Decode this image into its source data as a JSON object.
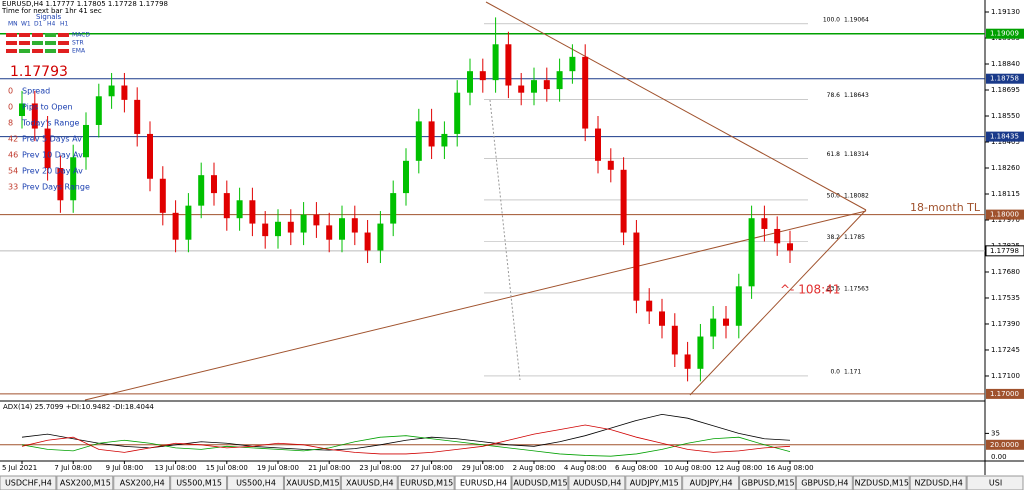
{
  "header": {
    "symbol_line": "EURUSD,H4  1.17777 1.17805 1.17728 1.17798",
    "timer": "Time for next bar 1hr 41 sec"
  },
  "panel": {
    "signals_title": "Signals",
    "timeframes": [
      "MN",
      "W1",
      "D1",
      "H4",
      "H1"
    ],
    "indicators": [
      "MACD",
      "STR",
      "EMA"
    ],
    "price": "1.17793",
    "rows": [
      {
        "value": "0",
        "label": "Spread"
      },
      {
        "value": "0",
        "label": "Pips to Open"
      },
      {
        "value": "8",
        "label": "Today's Range"
      },
      {
        "value": "42",
        "label": "Prev 5 Days Av"
      },
      {
        "value": "46",
        "label": "Prev 10 Day Av"
      },
      {
        "value": "54",
        "label": "Prev 20 Day Av"
      },
      {
        "value": "33",
        "label": "Prev Days Range"
      }
    ]
  },
  "chart_data": {
    "type": "candlestick",
    "bull_color": "#00c000",
    "bear_color": "#e00000",
    "categories": [
      "5 Jul 2021",
      null,
      null,
      null,
      "7 Jul 08:00",
      null,
      null,
      null,
      "9 Jul 08:00",
      null,
      null,
      null,
      "13 Jul 08:00",
      null,
      null,
      null,
      "15 Jul 08:00",
      null,
      null,
      null,
      "19 Jul 08:00",
      null,
      null,
      null,
      "21 Jul 08:00",
      null,
      null,
      null,
      "23 Jul 08:00",
      null,
      null,
      null,
      "27 Jul 08:00",
      null,
      null,
      null,
      "29 Jul 08:00",
      null,
      null,
      null,
      "2 Aug 08:00",
      null,
      null,
      null,
      "4 Aug 08:00",
      null,
      null,
      null,
      "6 Aug 08:00",
      null,
      null,
      null,
      "10 Aug 08:00",
      null,
      null,
      null,
      "12 Aug 08:00",
      null,
      null,
      null,
      "16 Aug 08:00"
    ],
    "candles": [
      [
        1.1855,
        1.1869,
        1.1848,
        1.1862
      ],
      [
        1.1862,
        1.1869,
        1.1841,
        1.1848
      ],
      [
        1.1848,
        1.1855,
        1.1819,
        1.1826
      ],
      [
        1.1826,
        1.1833,
        1.1801,
        1.1808
      ],
      [
        1.1808,
        1.1839,
        1.1801,
        1.1832
      ],
      [
        1.1832,
        1.1857,
        1.1825,
        1.185
      ],
      [
        1.185,
        1.1873,
        1.1843,
        1.1866
      ],
      [
        1.1866,
        1.1879,
        1.1859,
        1.1872
      ],
      [
        1.1872,
        1.1879,
        1.1857,
        1.1864
      ],
      [
        1.1864,
        1.1871,
        1.1838,
        1.1845
      ],
      [
        1.1845,
        1.1852,
        1.1813,
        1.182
      ],
      [
        1.182,
        1.1827,
        1.1794,
        1.1801
      ],
      [
        1.1801,
        1.1808,
        1.1779,
        1.1786
      ],
      [
        1.1786,
        1.1812,
        1.1779,
        1.1805
      ],
      [
        1.1805,
        1.1829,
        1.1798,
        1.1822
      ],
      [
        1.1822,
        1.1829,
        1.1805,
        1.1812
      ],
      [
        1.1812,
        1.1819,
        1.1791,
        1.1798
      ],
      [
        1.1798,
        1.1815,
        1.1791,
        1.1808
      ],
      [
        1.1808,
        1.1815,
        1.1788,
        1.1795
      ],
      [
        1.1795,
        1.1802,
        1.1781,
        1.1788
      ],
      [
        1.1788,
        1.1803,
        1.1781,
        1.1796
      ],
      [
        1.1796,
        1.1803,
        1.1783,
        1.179
      ],
      [
        1.179,
        1.1807,
        1.1783,
        1.18
      ],
      [
        1.18,
        1.1807,
        1.1787,
        1.1794
      ],
      [
        1.1794,
        1.1801,
        1.1779,
        1.1786
      ],
      [
        1.1786,
        1.1805,
        1.1779,
        1.1798
      ],
      [
        1.1798,
        1.1805,
        1.1783,
        1.179
      ],
      [
        1.179,
        1.1797,
        1.1773,
        1.178
      ],
      [
        1.178,
        1.1802,
        1.1773,
        1.1795
      ],
      [
        1.1795,
        1.1819,
        1.1788,
        1.1812
      ],
      [
        1.1812,
        1.1837,
        1.1805,
        1.183
      ],
      [
        1.183,
        1.1859,
        1.1823,
        1.1852
      ],
      [
        1.1852,
        1.1859,
        1.1831,
        1.1838
      ],
      [
        1.1838,
        1.1852,
        1.1831,
        1.1845
      ],
      [
        1.1845,
        1.1875,
        1.1838,
        1.1868
      ],
      [
        1.1868,
        1.1887,
        1.1861,
        1.188
      ],
      [
        1.188,
        1.1887,
        1.1868,
        1.1875
      ],
      [
        1.1875,
        1.191,
        1.1868,
        1.1895
      ],
      [
        1.1895,
        1.1902,
        1.1865,
        1.1872
      ],
      [
        1.1872,
        1.1879,
        1.1861,
        1.1868
      ],
      [
        1.1868,
        1.1882,
        1.1861,
        1.1875
      ],
      [
        1.1875,
        1.1882,
        1.1863,
        1.187
      ],
      [
        1.187,
        1.1887,
        1.1863,
        1.188
      ],
      [
        1.188,
        1.1895,
        1.1873,
        1.1888
      ],
      [
        1.1888,
        1.1895,
        1.1841,
        1.1848
      ],
      [
        1.1848,
        1.1855,
        1.1823,
        1.183
      ],
      [
        1.183,
        1.1837,
        1.1818,
        1.1825
      ],
      [
        1.1825,
        1.1832,
        1.1783,
        1.179
      ],
      [
        1.179,
        1.1797,
        1.1745,
        1.1752
      ],
      [
        1.1752,
        1.1759,
        1.1739,
        1.1746
      ],
      [
        1.1746,
        1.1753,
        1.1731,
        1.1738
      ],
      [
        1.1738,
        1.1745,
        1.1715,
        1.1722
      ],
      [
        1.1722,
        1.1729,
        1.1707,
        1.1714
      ],
      [
        1.1714,
        1.1739,
        1.1707,
        1.1732
      ],
      [
        1.1732,
        1.1749,
        1.1725,
        1.1742
      ],
      [
        1.1742,
        1.1749,
        1.1731,
        1.1738
      ],
      [
        1.1738,
        1.1767,
        1.1731,
        1.176
      ],
      [
        1.176,
        1.1805,
        1.1753,
        1.1798
      ],
      [
        1.1798,
        1.1805,
        1.1785,
        1.1792
      ],
      [
        1.1792,
        1.1799,
        1.1777,
        1.1784
      ],
      [
        1.1784,
        1.1791,
        1.1773,
        1.178
      ]
    ],
    "ylim": [
      1.16966,
      1.19197
    ],
    "yticks": [
      {
        "value": 1.1913,
        "label": "1.19130"
      },
      {
        "value": 1.18985,
        "label": "1.18985"
      },
      {
        "value": 1.1884,
        "label": "1.18840"
      },
      {
        "value": 1.18695,
        "label": "1.18695"
      },
      {
        "value": 1.1855,
        "label": "1.18550"
      },
      {
        "value": 1.18405,
        "label": "1.18405"
      },
      {
        "value": 1.1826,
        "label": "1.18260"
      },
      {
        "value": 1.18115,
        "label": "1.18115"
      },
      {
        "value": 1.1797,
        "label": "1.17970"
      },
      {
        "value": 1.17825,
        "label": "1.17825"
      },
      {
        "value": 1.1768,
        "label": "1.17680"
      },
      {
        "value": 1.17535,
        "label": "1.17535"
      },
      {
        "value": 1.1739,
        "label": "1.17390"
      },
      {
        "value": 1.17245,
        "label": "1.17245"
      },
      {
        "value": 1.171,
        "label": "1.17100"
      }
    ],
    "levels": [
      {
        "value": 1.19009,
        "label": "1.19009",
        "color": "#00a000"
      },
      {
        "value": 1.18758,
        "label": "1.18758",
        "color": "#1a3a8a"
      },
      {
        "value": 1.18435,
        "label": "1.18435",
        "color": "#1a3a8a"
      },
      {
        "value": 1.18,
        "label": "1.18000",
        "color": "#a0522d"
      },
      {
        "value": 1.17,
        "label": "1.17000",
        "color": "#a0522d"
      },
      {
        "value": 1.17798,
        "label": "1.17798",
        "color": "#ffffff"
      }
    ],
    "fib": [
      {
        "ratio": "100.0",
        "price": 1.19064
      },
      {
        "ratio": "78.6",
        "price": 1.18643
      },
      {
        "ratio": "61.8",
        "price": 1.18314
      },
      {
        "ratio": "50.0",
        "price": 1.18082
      },
      {
        "ratio": "38.2",
        "price": 1.1785
      },
      {
        "ratio": "23.6",
        "price": 1.17563
      },
      {
        "ratio": "0.0",
        "price": 1.171
      }
    ],
    "annotations": {
      "trendline": "18-month TL",
      "countdown": "^- 108:41"
    }
  },
  "indicator": {
    "label": "ADX(14) 25.7099 +DI:10.9482 -DI:18.4044",
    "ylim": [
      0,
      75
    ],
    "yticks": [
      35
    ],
    "level": {
      "value": 20,
      "label": "20.0000"
    },
    "zero_label": {
      "value": 0,
      "label": "0.00"
    },
    "series": [
      {
        "name": "ADX",
        "color": "#000000",
        "values": [
          30,
          34,
          28,
          22,
          18,
          16,
          20,
          24,
          22,
          18,
          16,
          14,
          13,
          15,
          20,
          26,
          30,
          28,
          24,
          20,
          18,
          24,
          32,
          42,
          52,
          60,
          55,
          45,
          35,
          28,
          26
        ]
      },
      {
        "name": "+DI",
        "color": "#00a000",
        "values": [
          20,
          14,
          12,
          22,
          26,
          22,
          16,
          14,
          18,
          16,
          14,
          12,
          16,
          24,
          30,
          32,
          28,
          24,
          20,
          16,
          12,
          8,
          6,
          5,
          8,
          14,
          22,
          28,
          30,
          20,
          11
        ]
      },
      {
        "name": "-DI",
        "color": "#d00000",
        "values": [
          18,
          26,
          30,
          14,
          10,
          16,
          22,
          20,
          16,
          18,
          22,
          20,
          14,
          10,
          8,
          8,
          10,
          14,
          18,
          26,
          34,
          40,
          46,
          40,
          30,
          22,
          14,
          10,
          12,
          16,
          18
        ]
      }
    ]
  },
  "tabs": [
    "USDCHF,H4",
    "ASX200,M15",
    "ASX200,H4",
    "US500,M15",
    "US500,H4",
    "XAUUSD,M15",
    "XAUUSD,H4",
    "EURUSD,M15",
    "EURUSD,H4",
    "AUDUSD,M15",
    "AUDUSD,H4",
    "AUDJPY,M15",
    "AUDJPY,H4",
    "GBPUSD,M15",
    "GBPUSD,H4",
    "NZDUSD,M15",
    "NZDUSD,H4",
    "USI"
  ],
  "active_tab": 8
}
